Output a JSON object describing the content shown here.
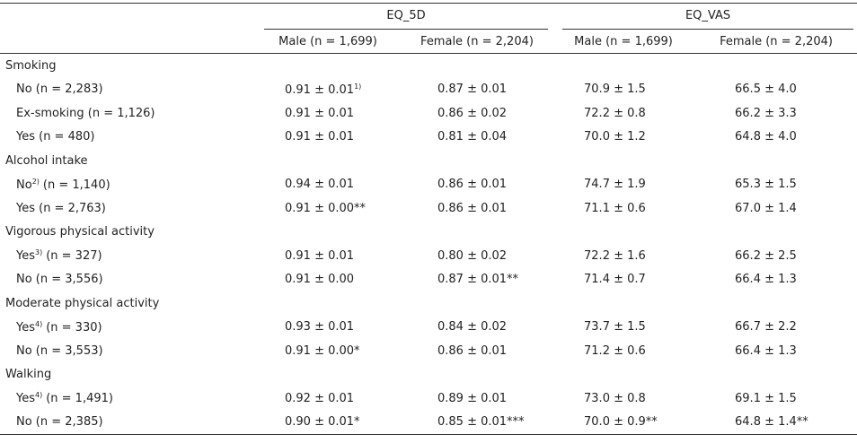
{
  "header": {
    "groups": [
      "EQ_5D",
      "EQ_VAS"
    ],
    "columns": [
      "Male (n = 1,699)",
      "Female (n = 2,204)",
      "Male (n = 1,699)",
      "Female (n = 2,204)"
    ]
  },
  "sections": [
    {
      "title": "Smoking",
      "rows": [
        {
          "label": {
            "main": "No (n = 2,283)"
          },
          "cells": [
            {
              "main": "0.91 ± 0.01",
              "sup": "1)"
            },
            "0.87 ± 0.01",
            "70.9 ± 1.5",
            "66.5 ± 4.0"
          ]
        },
        {
          "label": {
            "main": "Ex-smoking (n = 1,126)"
          },
          "cells": [
            "0.91 ± 0.01",
            "0.86 ± 0.02",
            "72.2 ± 0.8",
            "66.2 ± 3.3"
          ]
        },
        {
          "label": {
            "main": "Yes (n = 480)"
          },
          "cells": [
            "0.91 ± 0.01",
            "0.81 ± 0.04",
            "70.0 ± 1.2",
            "64.8 ± 4.0"
          ]
        }
      ]
    },
    {
      "title": "Alcohol intake",
      "rows": [
        {
          "label": {
            "main": "No",
            "sup": "2)",
            "rest": "(n = 1,140)"
          },
          "cells": [
            "0.94 ± 0.01",
            "0.86 ± 0.01",
            "74.7 ± 1.9",
            "65.3 ± 1.5"
          ]
        },
        {
          "label": {
            "main": "Yes (n = 2,763)"
          },
          "cells": [
            "0.91 ± 0.00**",
            "0.86 ± 0.01",
            "71.1 ± 0.6",
            "67.0 ± 1.4"
          ]
        }
      ]
    },
    {
      "title": "Vigorous physical activity",
      "rows": [
        {
          "label": {
            "main": "Yes",
            "sup": "3)",
            "rest": "(n = 327)"
          },
          "cells": [
            "0.91 ± 0.01",
            "0.80 ± 0.02",
            "72.2 ± 1.6",
            "66.2 ± 2.5"
          ]
        },
        {
          "label": {
            "main": "No (n = 3,556)"
          },
          "cells": [
            "0.91 ± 0.00",
            "0.87 ± 0.01**",
            "71.4 ± 0.7",
            "66.4 ± 1.3"
          ]
        }
      ]
    },
    {
      "title": "Moderate physical activity",
      "rows": [
        {
          "label": {
            "main": "Yes",
            "sup": "4)",
            "rest": "(n = 330)"
          },
          "cells": [
            "0.93 ± 0.01",
            "0.84 ± 0.02",
            "73.7 ± 1.5",
            "66.7 ± 2.2"
          ]
        },
        {
          "label": {
            "main": "No (n = 3,553)"
          },
          "cells": [
            "0.91 ± 0.00*",
            "0.86 ± 0.01",
            "71.2 ± 0.6",
            "66.4 ± 1.3"
          ]
        }
      ]
    },
    {
      "title": "Walking",
      "rows": [
        {
          "label": {
            "main": "Yes",
            "sup": "4)",
            "rest": "(n = 1,491)"
          },
          "cells": [
            "0.92 ± 0.01",
            "0.89 ± 0.01",
            "73.0 ± 0.8",
            "69.1 ± 1.5"
          ]
        },
        {
          "label": {
            "main": "No (n = 2,385)"
          },
          "cells": [
            "0.90 ± 0.01*",
            "0.85 ± 0.01***",
            "70.0 ± 0.9**",
            "64.8 ± 1.4**"
          ]
        }
      ]
    }
  ]
}
